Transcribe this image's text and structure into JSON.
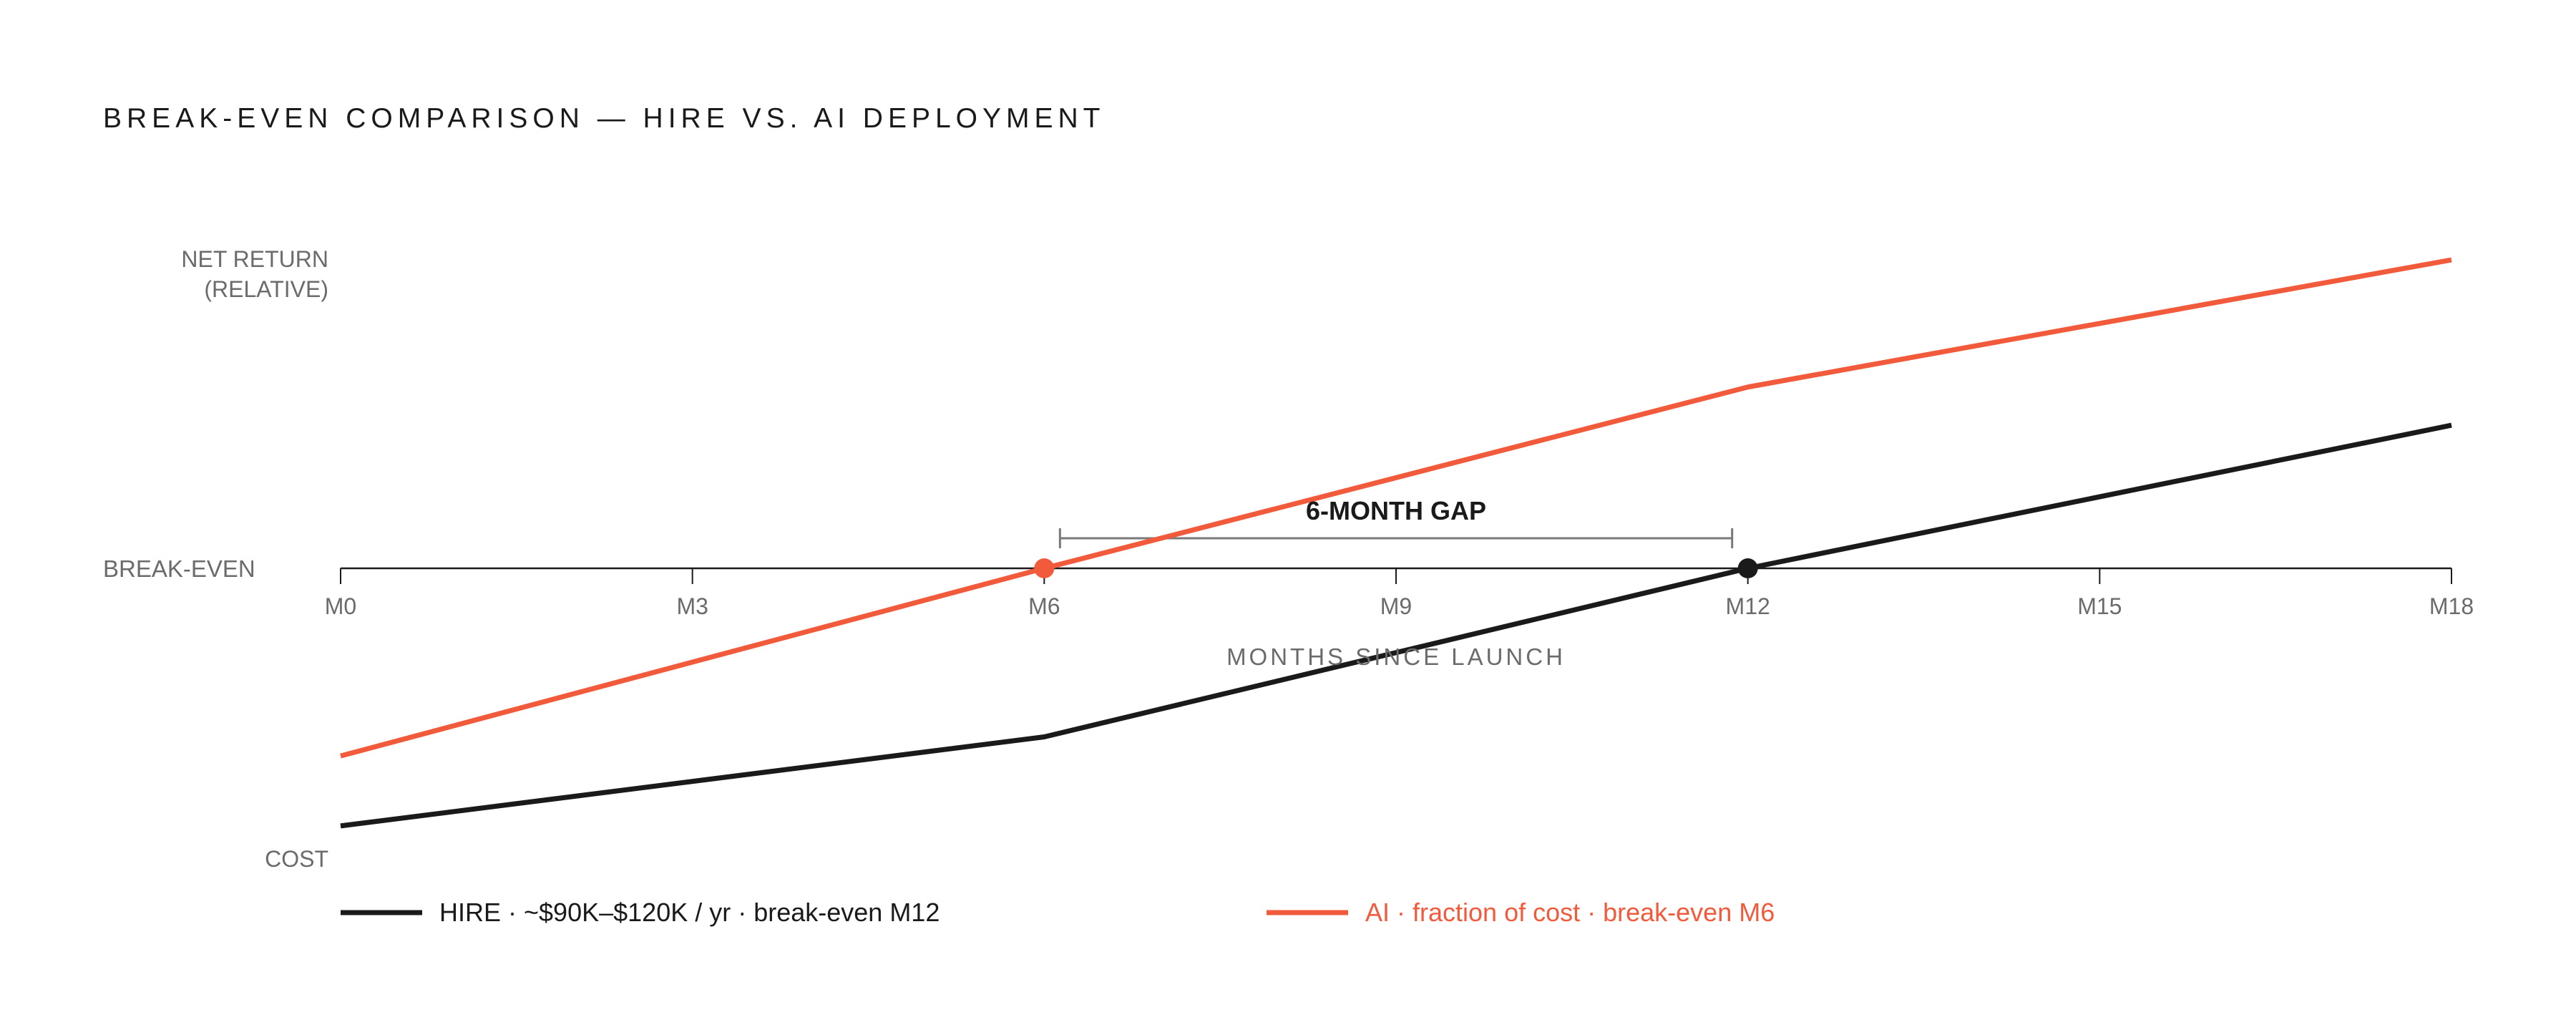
{
  "title": "BREAK-EVEN COMPARISON — HIRE VS. AI DEPLOYMENT",
  "chart_data": {
    "type": "line",
    "title": "BREAK-EVEN COMPARISON — HIRE VS. AI DEPLOYMENT",
    "xlabel": "MONTHS SINCE LAUNCH",
    "ylabel": "NET RETURN (RELATIVE)",
    "y_axis_labels": {
      "top_line1": "NET RETURN",
      "top_line2": "(RELATIVE)",
      "middle": "BREAK-EVEN",
      "bottom": "COST"
    },
    "x_ticks": [
      0,
      3,
      6,
      9,
      12,
      15,
      18
    ],
    "x_tick_labels": [
      "M0",
      "M3",
      "M6",
      "M9",
      "M12",
      "M15",
      "M18"
    ],
    "xlim": [
      0,
      18
    ],
    "ylim": [
      -100,
      100
    ],
    "grid": false,
    "legend_position": "bottom",
    "series": [
      {
        "name": "HIRE · ~$90K–$120K / yr · break-even M12",
        "color": "#1a1a1a",
        "x": [
          0,
          6,
          12,
          18
        ],
        "values": [
          -81,
          -53,
          0,
          45
        ],
        "breakeven_month": 12
      },
      {
        "name": "AI · fraction of cost · break-even M6",
        "color": "#f25a3c",
        "x": [
          0,
          6,
          12,
          18
        ],
        "values": [
          -59,
          0,
          57,
          97
        ],
        "breakeven_month": 6
      }
    ],
    "annotations": [
      {
        "text": "6-MONTH GAP",
        "from_month": 6,
        "to_month": 12
      }
    ]
  }
}
